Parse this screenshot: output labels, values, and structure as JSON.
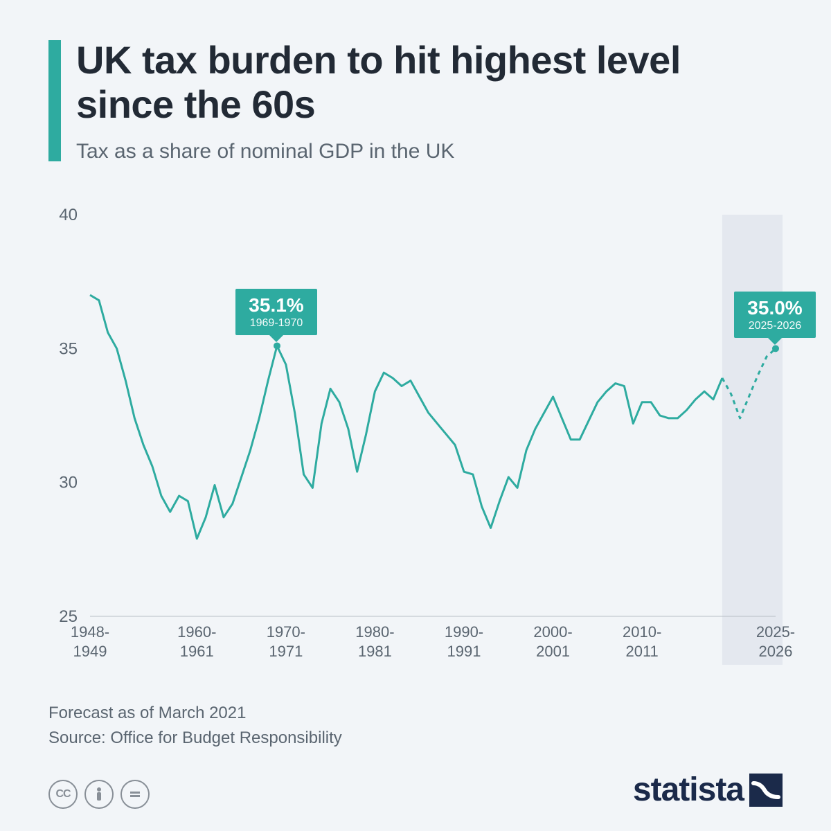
{
  "header": {
    "title": "UK tax burden to hit highest level since the 60s",
    "subtitle": "Tax as a share of nominal GDP in the UK"
  },
  "chart": {
    "type": "line",
    "background_color": "#f2f5f8",
    "forecast_band_color": "#e4e8ef",
    "line_color": "#2eaba0",
    "line_width": 3,
    "dash_pattern": "6 6",
    "ylim": [
      25,
      40
    ],
    "yticks": [
      25,
      30,
      35,
      40
    ],
    "y_fontsize": 24,
    "y_color": "#5a6570",
    "xticks": [
      {
        "year": 1948,
        "label_top": "1948-",
        "label_bot": "1949"
      },
      {
        "year": 1960,
        "label_top": "1960-",
        "label_bot": "1961"
      },
      {
        "year": 1970,
        "label_top": "1970-",
        "label_bot": "1971"
      },
      {
        "year": 1980,
        "label_top": "1980-",
        "label_bot": "1981"
      },
      {
        "year": 1990,
        "label_top": "1990-",
        "label_bot": "1991"
      },
      {
        "year": 2000,
        "label_top": "2000-",
        "label_bot": "2001"
      },
      {
        "year": 2010,
        "label_top": "2010-",
        "label_bot": "2011"
      },
      {
        "year": 2025,
        "label_top": "2025-",
        "label_bot": "2026"
      }
    ],
    "x_fontsize": 22,
    "x_color": "#5a6570",
    "forecast_start_year": 2019,
    "series": [
      {
        "year": 1948,
        "v": 37.0
      },
      {
        "year": 1949,
        "v": 36.8
      },
      {
        "year": 1950,
        "v": 35.6
      },
      {
        "year": 1951,
        "v": 35.0
      },
      {
        "year": 1952,
        "v": 33.8
      },
      {
        "year": 1953,
        "v": 32.4
      },
      {
        "year": 1954,
        "v": 31.4
      },
      {
        "year": 1955,
        "v": 30.6
      },
      {
        "year": 1956,
        "v": 29.5
      },
      {
        "year": 1957,
        "v": 28.9
      },
      {
        "year": 1958,
        "v": 29.5
      },
      {
        "year": 1959,
        "v": 29.3
      },
      {
        "year": 1960,
        "v": 27.9
      },
      {
        "year": 1961,
        "v": 28.7
      },
      {
        "year": 1962,
        "v": 29.9
      },
      {
        "year": 1963,
        "v": 28.7
      },
      {
        "year": 1964,
        "v": 29.2
      },
      {
        "year": 1965,
        "v": 30.2
      },
      {
        "year": 1966,
        "v": 31.2
      },
      {
        "year": 1967,
        "v": 32.4
      },
      {
        "year": 1968,
        "v": 33.8
      },
      {
        "year": 1969,
        "v": 35.1
      },
      {
        "year": 1970,
        "v": 34.4
      },
      {
        "year": 1971,
        "v": 32.6
      },
      {
        "year": 1972,
        "v": 30.3
      },
      {
        "year": 1973,
        "v": 29.8
      },
      {
        "year": 1974,
        "v": 32.2
      },
      {
        "year": 1975,
        "v": 33.5
      },
      {
        "year": 1976,
        "v": 33.0
      },
      {
        "year": 1977,
        "v": 32.0
      },
      {
        "year": 1978,
        "v": 30.4
      },
      {
        "year": 1979,
        "v": 31.8
      },
      {
        "year": 1980,
        "v": 33.4
      },
      {
        "year": 1981,
        "v": 34.1
      },
      {
        "year": 1982,
        "v": 33.9
      },
      {
        "year": 1983,
        "v": 33.6
      },
      {
        "year": 1984,
        "v": 33.8
      },
      {
        "year": 1985,
        "v": 33.2
      },
      {
        "year": 1986,
        "v": 32.6
      },
      {
        "year": 1987,
        "v": 32.2
      },
      {
        "year": 1988,
        "v": 31.8
      },
      {
        "year": 1989,
        "v": 31.4
      },
      {
        "year": 1990,
        "v": 30.4
      },
      {
        "year": 1991,
        "v": 30.3
      },
      {
        "year": 1992,
        "v": 29.1
      },
      {
        "year": 1993,
        "v": 28.3
      },
      {
        "year": 1994,
        "v": 29.3
      },
      {
        "year": 1995,
        "v": 30.2
      },
      {
        "year": 1996,
        "v": 29.8
      },
      {
        "year": 1997,
        "v": 31.2
      },
      {
        "year": 1998,
        "v": 32.0
      },
      {
        "year": 1999,
        "v": 32.6
      },
      {
        "year": 2000,
        "v": 33.2
      },
      {
        "year": 2001,
        "v": 32.4
      },
      {
        "year": 2002,
        "v": 31.6
      },
      {
        "year": 2003,
        "v": 31.6
      },
      {
        "year": 2004,
        "v": 32.3
      },
      {
        "year": 2005,
        "v": 33.0
      },
      {
        "year": 2006,
        "v": 33.4
      },
      {
        "year": 2007,
        "v": 33.7
      },
      {
        "year": 2008,
        "v": 33.6
      },
      {
        "year": 2009,
        "v": 32.2
      },
      {
        "year": 2010,
        "v": 33.0
      },
      {
        "year": 2011,
        "v": 33.0
      },
      {
        "year": 2012,
        "v": 32.5
      },
      {
        "year": 2013,
        "v": 32.4
      },
      {
        "year": 2014,
        "v": 32.4
      },
      {
        "year": 2015,
        "v": 32.7
      },
      {
        "year": 2016,
        "v": 33.1
      },
      {
        "year": 2017,
        "v": 33.4
      },
      {
        "year": 2018,
        "v": 33.1
      },
      {
        "year": 2019,
        "v": 33.9
      },
      {
        "year": 2020,
        "v": 33.3
      },
      {
        "year": 2021,
        "v": 32.4
      },
      {
        "year": 2022,
        "v": 33.2
      },
      {
        "year": 2023,
        "v": 34.0
      },
      {
        "year": 2024,
        "v": 34.7
      },
      {
        "year": 2025,
        "v": 35.0
      }
    ],
    "callouts": [
      {
        "year": 1969,
        "value": "35.1%",
        "period": "1969-1970",
        "yv": 35.1
      },
      {
        "year": 2025,
        "value": "35.0%",
        "period": "2025-2026",
        "yv": 35.0
      }
    ]
  },
  "footer": {
    "forecast": "Forecast as of March 2021",
    "source": "Source: Office for Budget Responsibility",
    "logo": "statista"
  }
}
